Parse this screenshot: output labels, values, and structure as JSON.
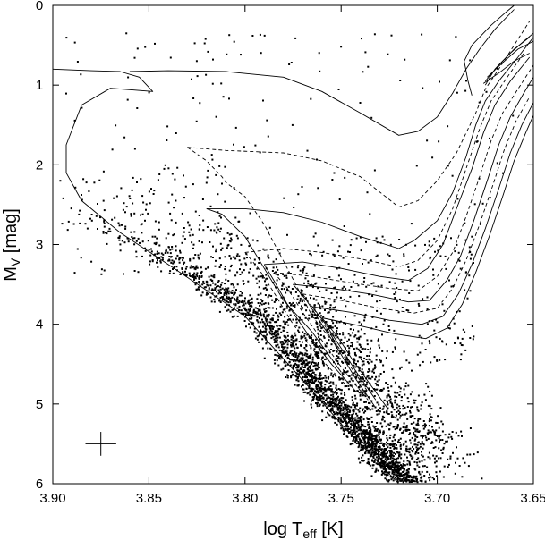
{
  "chart_data": {
    "type": "scatter",
    "xlabel": {
      "main": "log T",
      "sub": "eff",
      "unit": " [K]"
    },
    "ylabel": {
      "main": "M",
      "sub": "V",
      "unit": " [mag]"
    },
    "xlim": [
      3.9,
      3.65
    ],
    "ylim": [
      6,
      0
    ],
    "y_inverted": true,
    "grid": false,
    "x_ticks": [
      "3.90",
      "3.85",
      "3.80",
      "3.75",
      "3.70",
      "3.65"
    ],
    "x_tick_values": [
      3.9,
      3.85,
      3.8,
      3.75,
      3.7,
      3.65
    ],
    "y_ticks": [
      "0",
      "1",
      "2",
      "3",
      "4",
      "5",
      "6"
    ],
    "y_tick_values": [
      0,
      1,
      2,
      3,
      4,
      5,
      6
    ],
    "error_cross": {
      "x": 3.875,
      "y": 5.5,
      "dx": 0.008,
      "dy": 0.15
    },
    "scatter_model": {
      "main_sequence": [
        [
          3.895,
          2.65
        ],
        [
          3.85,
          3.1
        ],
        [
          3.8,
          3.9
        ],
        [
          3.77,
          4.7
        ],
        [
          3.75,
          5.2
        ],
        [
          3.73,
          5.75
        ],
        [
          3.718,
          6.0
        ]
      ],
      "n_points": 3200,
      "seed": 42
    },
    "series": [
      {
        "style": "solid",
        "values": [
          [
            3.9,
            0.8
          ],
          [
            3.88,
            0.82
          ],
          [
            3.865,
            0.83
          ],
          [
            3.855,
            0.9
          ],
          [
            3.848,
            1.08
          ],
          [
            3.87,
            1.04
          ],
          [
            3.885,
            1.25
          ],
          [
            3.893,
            1.75
          ],
          [
            3.893,
            2.1
          ],
          [
            3.885,
            2.45
          ],
          [
            3.865,
            2.85
          ],
          [
            3.84,
            3.25
          ],
          [
            3.8,
            3.9
          ],
          [
            3.77,
            4.7
          ],
          [
            3.75,
            5.25
          ],
          [
            3.72,
            6.0
          ]
        ]
      },
      {
        "style": "solid",
        "values": [
          [
            3.86,
            0.83
          ],
          [
            3.84,
            0.82
          ],
          [
            3.81,
            0.83
          ],
          [
            3.78,
            0.9
          ],
          [
            3.76,
            1.08
          ],
          [
            3.74,
            1.35
          ],
          [
            3.72,
            1.63
          ],
          [
            3.71,
            1.58
          ],
          [
            3.7,
            1.4
          ],
          [
            3.692,
            1.1
          ],
          [
            3.685,
            0.8
          ],
          [
            3.678,
            0.55
          ],
          [
            3.67,
            0.3
          ],
          [
            3.66,
            0.05
          ]
        ]
      },
      {
        "style": "solid",
        "values": [
          [
            3.682,
            1.13
          ],
          [
            3.684,
            0.95
          ],
          [
            3.686,
            0.7
          ],
          [
            3.682,
            0.5
          ],
          [
            3.672,
            0.25
          ],
          [
            3.665,
            0.1
          ],
          [
            3.66,
            0.0
          ]
        ]
      },
      {
        "style": "dashed",
        "values": [
          [
            3.83,
            1.78
          ],
          [
            3.81,
            1.82
          ],
          [
            3.78,
            1.85
          ],
          [
            3.76,
            1.95
          ],
          [
            3.74,
            2.15
          ],
          [
            3.72,
            2.53
          ],
          [
            3.71,
            2.45
          ],
          [
            3.7,
            2.2
          ],
          [
            3.69,
            1.85
          ],
          [
            3.68,
            1.35
          ],
          [
            3.675,
            1.05
          ],
          [
            3.668,
            0.8
          ],
          [
            3.66,
            0.5
          ],
          [
            3.652,
            0.2
          ]
        ]
      },
      {
        "style": "dashed",
        "values": [
          [
            3.83,
            1.78
          ],
          [
            3.82,
            1.95
          ],
          [
            3.812,
            2.15
          ],
          [
            3.81,
            2.22
          ],
          [
            3.8,
            2.4
          ],
          [
            3.79,
            2.75
          ],
          [
            3.778,
            3.3
          ],
          [
            3.765,
            3.9
          ],
          [
            3.75,
            4.35
          ]
        ]
      },
      {
        "style": "solid",
        "values": [
          [
            3.82,
            2.55
          ],
          [
            3.8,
            2.55
          ],
          [
            3.78,
            2.6
          ],
          [
            3.76,
            2.72
          ],
          [
            3.74,
            2.9
          ],
          [
            3.72,
            3.05
          ],
          [
            3.712,
            2.95
          ],
          [
            3.7,
            2.7
          ],
          [
            3.692,
            2.35
          ],
          [
            3.685,
            1.9
          ],
          [
            3.68,
            1.5
          ],
          [
            3.675,
            1.2
          ],
          [
            3.668,
            0.95
          ],
          [
            3.658,
            0.65
          ],
          [
            3.65,
            0.4
          ]
        ]
      },
      {
        "style": "solid",
        "values": [
          [
            3.82,
            2.55
          ],
          [
            3.812,
            2.62
          ],
          [
            3.8,
            2.9
          ],
          [
            3.79,
            3.3
          ],
          [
            3.78,
            3.7
          ],
          [
            3.765,
            4.1
          ],
          [
            3.75,
            4.6
          ]
        ]
      },
      {
        "style": "dashed",
        "values": [
          [
            3.8,
            3.1
          ],
          [
            3.78,
            3.05
          ],
          [
            3.76,
            3.1
          ],
          [
            3.74,
            3.18
          ],
          [
            3.72,
            3.28
          ],
          [
            3.71,
            3.2
          ],
          [
            3.7,
            2.95
          ],
          [
            3.692,
            2.55
          ],
          [
            3.685,
            2.05
          ],
          [
            3.678,
            1.55
          ],
          [
            3.672,
            1.2
          ],
          [
            3.665,
            0.95
          ],
          [
            3.655,
            0.6
          ]
        ]
      },
      {
        "style": "dashed",
        "values": [
          [
            3.8,
            3.1
          ],
          [
            3.793,
            3.3
          ],
          [
            3.785,
            3.6
          ],
          [
            3.775,
            4.0
          ],
          [
            3.762,
            4.4
          ],
          [
            3.748,
            4.75
          ]
        ]
      },
      {
        "style": "solid",
        "values": [
          [
            3.79,
            3.25
          ],
          [
            3.77,
            3.22
          ],
          [
            3.75,
            3.3
          ],
          [
            3.73,
            3.4
          ],
          [
            3.715,
            3.45
          ],
          [
            3.705,
            3.3
          ],
          [
            3.697,
            3.0
          ],
          [
            3.69,
            2.55
          ],
          [
            3.682,
            2.05
          ],
          [
            3.676,
            1.6
          ],
          [
            3.67,
            1.25
          ],
          [
            3.662,
            0.95
          ],
          [
            3.652,
            0.65
          ]
        ]
      },
      {
        "style": "solid",
        "values": [
          [
            3.79,
            3.25
          ],
          [
            3.785,
            3.45
          ],
          [
            3.778,
            3.75
          ],
          [
            3.768,
            4.1
          ],
          [
            3.755,
            4.5
          ],
          [
            3.742,
            4.85
          ]
        ]
      },
      {
        "style": "dashed",
        "values": [
          [
            3.785,
            3.35
          ],
          [
            3.765,
            3.4
          ],
          [
            3.745,
            3.48
          ],
          [
            3.725,
            3.55
          ],
          [
            3.71,
            3.58
          ],
          [
            3.7,
            3.4
          ],
          [
            3.692,
            3.1
          ],
          [
            3.685,
            2.65
          ],
          [
            3.678,
            2.15
          ],
          [
            3.672,
            1.7
          ],
          [
            3.666,
            1.35
          ],
          [
            3.658,
            1.05
          ],
          [
            3.65,
            0.75
          ]
        ]
      },
      {
        "style": "dashed",
        "values": [
          [
            3.785,
            3.35
          ],
          [
            3.778,
            3.55
          ],
          [
            3.77,
            3.85
          ],
          [
            3.76,
            4.2
          ],
          [
            3.748,
            4.6
          ],
          [
            3.736,
            4.95
          ]
        ]
      },
      {
        "style": "solid",
        "values": [
          [
            3.775,
            3.5
          ],
          [
            3.755,
            3.55
          ],
          [
            3.735,
            3.62
          ],
          [
            3.715,
            3.72
          ],
          [
            3.704,
            3.7
          ],
          [
            3.695,
            3.45
          ],
          [
            3.688,
            3.15
          ],
          [
            3.681,
            2.7
          ],
          [
            3.674,
            2.2
          ],
          [
            3.668,
            1.75
          ],
          [
            3.662,
            1.4
          ],
          [
            3.655,
            1.1
          ],
          [
            3.65,
            0.9
          ]
        ]
      },
      {
        "style": "solid",
        "values": [
          [
            3.775,
            3.5
          ],
          [
            3.768,
            3.7
          ],
          [
            3.76,
            4.0
          ],
          [
            3.752,
            4.3
          ],
          [
            3.742,
            4.7
          ],
          [
            3.732,
            5.05
          ]
        ]
      },
      {
        "style": "dashed",
        "values": [
          [
            3.77,
            3.62
          ],
          [
            3.75,
            3.7
          ],
          [
            3.73,
            3.8
          ],
          [
            3.712,
            3.86
          ],
          [
            3.7,
            3.8
          ],
          [
            3.692,
            3.55
          ],
          [
            3.685,
            3.2
          ],
          [
            3.678,
            2.75
          ],
          [
            3.671,
            2.25
          ],
          [
            3.665,
            1.8
          ],
          [
            3.659,
            1.45
          ],
          [
            3.652,
            1.15
          ]
        ]
      },
      {
        "style": "dashed",
        "values": [
          [
            3.77,
            3.62
          ],
          [
            3.763,
            3.85
          ],
          [
            3.755,
            4.15
          ],
          [
            3.746,
            4.5
          ],
          [
            3.736,
            4.85
          ]
        ]
      },
      {
        "style": "solid",
        "values": [
          [
            3.765,
            3.78
          ],
          [
            3.745,
            3.85
          ],
          [
            3.725,
            3.95
          ],
          [
            3.708,
            4.0
          ],
          [
            3.697,
            3.9
          ],
          [
            3.689,
            3.62
          ],
          [
            3.682,
            3.25
          ],
          [
            3.675,
            2.8
          ],
          [
            3.668,
            2.3
          ],
          [
            3.662,
            1.85
          ],
          [
            3.656,
            1.5
          ],
          [
            3.65,
            1.22
          ]
        ]
      },
      {
        "style": "solid",
        "values": [
          [
            3.765,
            3.78
          ],
          [
            3.758,
            4.0
          ],
          [
            3.75,
            4.3
          ],
          [
            3.742,
            4.6
          ],
          [
            3.732,
            4.95
          ]
        ]
      },
      {
        "style": "solid",
        "values": [
          [
            3.76,
            3.92
          ],
          [
            3.74,
            4.02
          ],
          [
            3.722,
            4.12
          ],
          [
            3.706,
            4.18
          ],
          [
            3.695,
            4.05
          ],
          [
            3.687,
            3.75
          ],
          [
            3.68,
            3.35
          ],
          [
            3.673,
            2.9
          ],
          [
            3.666,
            2.4
          ],
          [
            3.66,
            1.95
          ],
          [
            3.654,
            1.6
          ],
          [
            3.65,
            1.38
          ]
        ]
      },
      {
        "style": "solid",
        "values": [
          [
            3.76,
            3.92
          ],
          [
            3.752,
            4.15
          ],
          [
            3.744,
            4.45
          ],
          [
            3.735,
            4.75
          ],
          [
            3.726,
            5.05
          ]
        ]
      },
      {
        "style": "solid",
        "values": [
          [
            3.675,
            1.0
          ],
          [
            3.67,
            0.8
          ],
          [
            3.662,
            0.6
          ],
          [
            3.655,
            0.45
          ],
          [
            3.65,
            0.35
          ]
        ]
      },
      {
        "style": "solid",
        "values": [
          [
            3.675,
            0.95
          ],
          [
            3.668,
            0.75
          ],
          [
            3.66,
            0.55
          ],
          [
            3.652,
            0.4
          ]
        ]
      },
      {
        "style": "solid",
        "values": [
          [
            3.674,
            0.9
          ],
          [
            3.666,
            0.72
          ],
          [
            3.658,
            0.55
          ],
          [
            3.65,
            0.45
          ]
        ]
      },
      {
        "style": "solid",
        "values": [
          [
            3.676,
            0.98
          ],
          [
            3.668,
            0.85
          ],
          [
            3.66,
            0.7
          ],
          [
            3.652,
            0.6
          ]
        ]
      }
    ]
  }
}
